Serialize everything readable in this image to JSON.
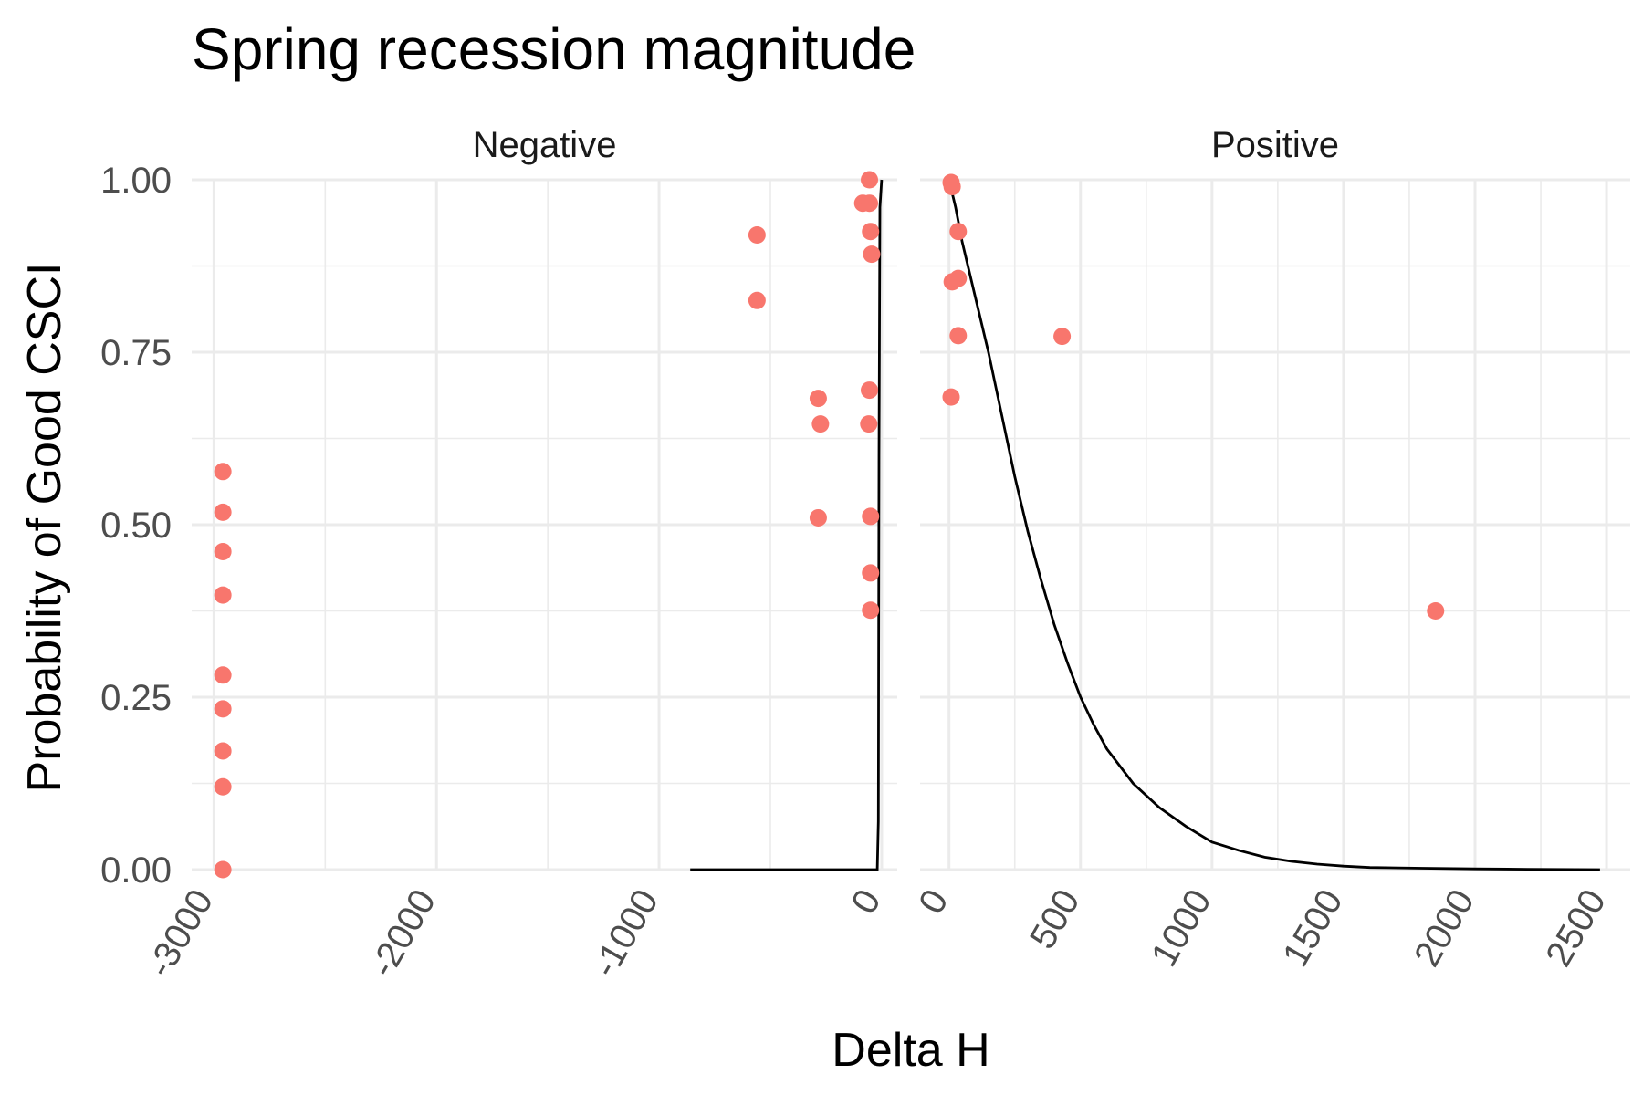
{
  "chart_data": {
    "type": "scatter",
    "title": "Spring recession magnitude",
    "xlabel": "Delta H",
    "ylabel": "Probability of Good CSCI",
    "ylim": [
      0,
      1
    ],
    "y_ticks": [
      0,
      0.25,
      0.5,
      0.75,
      1
    ],
    "y_tick_labels": [
      "0.00",
      "0.25",
      "0.50",
      "0.75",
      "1.00"
    ],
    "grid": true,
    "point_color": "#F8766D",
    "curve_color": "#000000",
    "panels": [
      {
        "label": "Negative",
        "xlim": [
          -3100,
          70
        ],
        "x_ticks": [
          -3000,
          -2000,
          -1000,
          0
        ],
        "x_tick_labels": [
          "-3000",
          "-2000",
          "-1000",
          "0"
        ],
        "points": [
          {
            "x": -2960,
            "y": 0.577
          },
          {
            "x": -2960,
            "y": 0.518
          },
          {
            "x": -2960,
            "y": 0.461
          },
          {
            "x": -2960,
            "y": 0.398
          },
          {
            "x": -2960,
            "y": 0.282
          },
          {
            "x": -2960,
            "y": 0.233
          },
          {
            "x": -2960,
            "y": 0.172
          },
          {
            "x": -2960,
            "y": 0.12
          },
          {
            "x": -2960,
            "y": 0.0
          },
          {
            "x": -560,
            "y": 0.92
          },
          {
            "x": -560,
            "y": 0.825
          },
          {
            "x": -285,
            "y": 0.683
          },
          {
            "x": -275,
            "y": 0.646
          },
          {
            "x": -285,
            "y": 0.51
          },
          {
            "x": -55,
            "y": 1.0
          },
          {
            "x": -85,
            "y": 0.966
          },
          {
            "x": -55,
            "y": 0.966
          },
          {
            "x": -50,
            "y": 0.925
          },
          {
            "x": -45,
            "y": 0.892
          },
          {
            "x": -55,
            "y": 0.695
          },
          {
            "x": -58,
            "y": 0.646
          },
          {
            "x": -50,
            "y": 0.512
          },
          {
            "x": -50,
            "y": 0.43
          },
          {
            "x": -50,
            "y": 0.376
          }
        ],
        "fit_curve": [
          {
            "x": -860,
            "y": 0.0
          },
          {
            "x": -20,
            "y": 0.0
          },
          {
            "x": -15,
            "y": 0.07
          },
          {
            "x": -12,
            "y": 0.6
          },
          {
            "x": -8,
            "y": 0.96
          },
          {
            "x": 0,
            "y": 1.0
          }
        ]
      },
      {
        "label": "Positive",
        "xlim": [
          -110,
          2590
        ],
        "x_ticks": [
          0,
          500,
          1000,
          1500,
          2000,
          2500
        ],
        "x_tick_labels": [
          "0",
          "500",
          "1000",
          "1500",
          "2000",
          "2500"
        ],
        "points": [
          {
            "x": 8,
            "y": 0.996
          },
          {
            "x": 12,
            "y": 0.99
          },
          {
            "x": 35,
            "y": 0.925
          },
          {
            "x": 12,
            "y": 0.852
          },
          {
            "x": 35,
            "y": 0.857
          },
          {
            "x": 35,
            "y": 0.774
          },
          {
            "x": 8,
            "y": 0.685
          },
          {
            "x": 430,
            "y": 0.773
          },
          {
            "x": 1850,
            "y": 0.375
          }
        ],
        "fit_curve": [
          {
            "x": 0,
            "y": 1.0
          },
          {
            "x": 25,
            "y": 0.96
          },
          {
            "x": 50,
            "y": 0.91
          },
          {
            "x": 100,
            "y": 0.83
          },
          {
            "x": 150,
            "y": 0.75
          },
          {
            "x": 200,
            "y": 0.66
          },
          {
            "x": 250,
            "y": 0.57
          },
          {
            "x": 300,
            "y": 0.49
          },
          {
            "x": 350,
            "y": 0.42
          },
          {
            "x": 400,
            "y": 0.355
          },
          {
            "x": 450,
            "y": 0.3
          },
          {
            "x": 500,
            "y": 0.25
          },
          {
            "x": 550,
            "y": 0.21
          },
          {
            "x": 600,
            "y": 0.175
          },
          {
            "x": 700,
            "y": 0.125
          },
          {
            "x": 800,
            "y": 0.09
          },
          {
            "x": 900,
            "y": 0.063
          },
          {
            "x": 1000,
            "y": 0.04
          },
          {
            "x": 1100,
            "y": 0.028
          },
          {
            "x": 1200,
            "y": 0.018
          },
          {
            "x": 1300,
            "y": 0.012
          },
          {
            "x": 1400,
            "y": 0.008
          },
          {
            "x": 1500,
            "y": 0.005
          },
          {
            "x": 1600,
            "y": 0.003
          },
          {
            "x": 1800,
            "y": 0.002
          },
          {
            "x": 2000,
            "y": 0.001
          },
          {
            "x": 2200,
            "y": 0.0005
          },
          {
            "x": 2475,
            "y": 0.0
          }
        ]
      }
    ]
  }
}
